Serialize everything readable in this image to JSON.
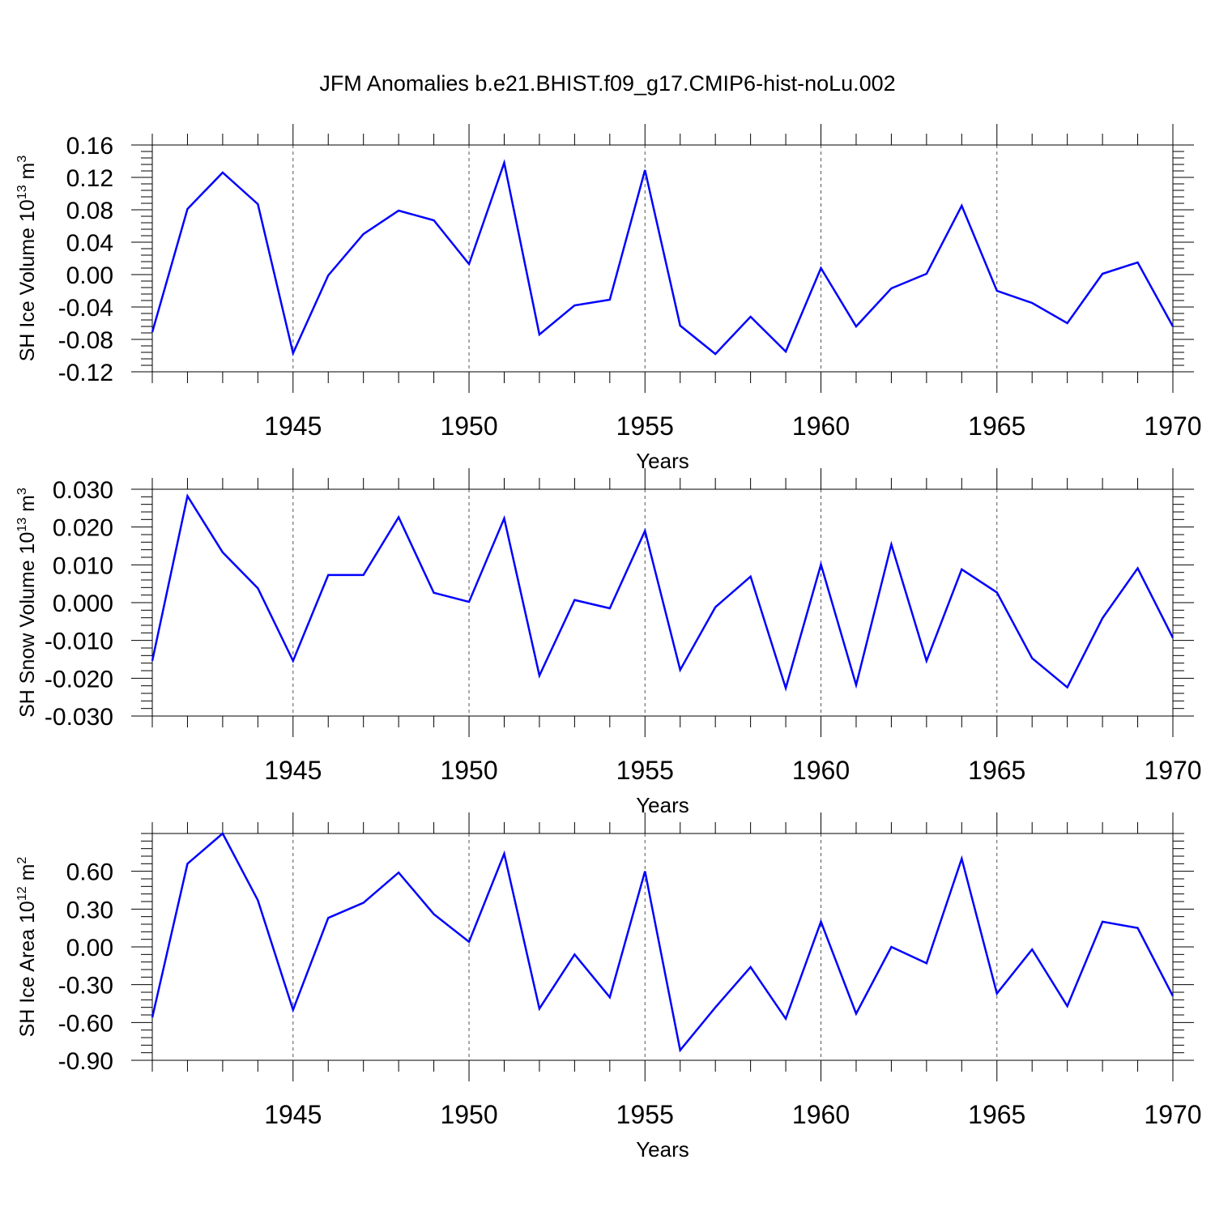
{
  "title": "JFM Anomalies b.e21.BHIST.f09_g17.CMIP6-hist-noLu.002",
  "line_color": "#0000ff",
  "chart_data": [
    {
      "type": "line",
      "ylabel_main": "SH Ice Volume 10",
      "ylabel_exp": "13",
      "ylabel_unit": " m",
      "ylabel_unit_exp": "3",
      "xlabel": "Years",
      "xlim": [
        1941,
        1970
      ],
      "ylim": [
        -0.12,
        0.16
      ],
      "yticks": [
        "0.16",
        "0.12",
        "0.08",
        "0.04",
        "0.00",
        "-0.04",
        "-0.08",
        "-0.12"
      ],
      "ytick_values": [
        0.16,
        0.12,
        0.08,
        0.04,
        0.0,
        -0.04,
        -0.08,
        -0.12
      ],
      "xticks": [
        "1945",
        "1950",
        "1955",
        "1960",
        "1965",
        "1970"
      ],
      "xtick_values": [
        1945,
        1950,
        1955,
        1960,
        1965,
        1970
      ],
      "x": [
        1941,
        1942,
        1943,
        1944,
        1945,
        1946,
        1947,
        1948,
        1949,
        1950,
        1951,
        1952,
        1953,
        1954,
        1955,
        1956,
        1957,
        1958,
        1959,
        1960,
        1961,
        1962,
        1963,
        1964,
        1965,
        1966,
        1967,
        1968,
        1969,
        1970
      ],
      "values": [
        -0.071,
        0.081,
        0.126,
        0.087,
        -0.097,
        -0.001,
        0.05,
        0.079,
        0.067,
        0.013,
        0.138,
        -0.074,
        -0.038,
        -0.031,
        0.129,
        -0.063,
        -0.098,
        -0.052,
        -0.095,
        0.008,
        -0.064,
        -0.017,
        0.001,
        0.085,
        -0.02,
        -0.035,
        -0.06,
        0.001,
        0.015,
        -0.064
      ]
    },
    {
      "type": "line",
      "ylabel_main": "SH Snow Volume 10",
      "ylabel_exp": "13",
      "ylabel_unit": " m",
      "ylabel_unit_exp": "3",
      "xlabel": "Years",
      "xlim": [
        1941,
        1970
      ],
      "ylim": [
        -0.03,
        0.03
      ],
      "yticks": [
        "0.030",
        "0.020",
        "0.010",
        "0.000",
        "-0.010",
        "-0.020",
        "-0.030"
      ],
      "ytick_values": [
        0.03,
        0.02,
        0.01,
        0.0,
        -0.01,
        -0.02,
        -0.03
      ],
      "xticks": [
        "1945",
        "1950",
        "1955",
        "1960",
        "1965",
        "1970"
      ],
      "xtick_values": [
        1945,
        1950,
        1955,
        1960,
        1965,
        1970
      ],
      "x": [
        1941,
        1942,
        1943,
        1944,
        1945,
        1946,
        1947,
        1948,
        1949,
        1950,
        1951,
        1952,
        1953,
        1954,
        1955,
        1956,
        1957,
        1958,
        1959,
        1960,
        1961,
        1962,
        1963,
        1964,
        1965,
        1966,
        1967,
        1968,
        1969,
        1970
      ],
      "values": [
        -0.0154,
        0.0282,
        0.0133,
        0.0038,
        -0.0154,
        0.0073,
        0.0073,
        0.0226,
        0.0026,
        0.0002,
        0.0223,
        -0.0193,
        0.0007,
        -0.0015,
        0.019,
        -0.0178,
        -0.0012,
        0.0069,
        -0.0226,
        0.0101,
        -0.0218,
        0.0154,
        -0.0154,
        0.0088,
        0.0027,
        -0.0147,
        -0.0224,
        -0.0041,
        0.0091,
        -0.0093
      ]
    },
    {
      "type": "line",
      "ylabel_main": "SH Ice Area 10",
      "ylabel_exp": "12",
      "ylabel_unit": " m",
      "ylabel_unit_exp": "2",
      "xlabel": "Years",
      "xlim": [
        1941,
        1970
      ],
      "ylim": [
        -0.9,
        0.9
      ],
      "yticks": [
        "0.60",
        "0.30",
        "0.00",
        "-0.30",
        "-0.60",
        "-0.90"
      ],
      "ytick_values": [
        0.6,
        0.3,
        0.0,
        -0.3,
        -0.6,
        -0.9
      ],
      "xticks": [
        "1945",
        "1950",
        "1955",
        "1960",
        "1965",
        "1970"
      ],
      "xtick_values": [
        1945,
        1950,
        1955,
        1960,
        1965,
        1970
      ],
      "x": [
        1941,
        1942,
        1943,
        1944,
        1945,
        1946,
        1947,
        1948,
        1949,
        1950,
        1951,
        1952,
        1953,
        1954,
        1955,
        1956,
        1957,
        1958,
        1959,
        1960,
        1961,
        1962,
        1963,
        1964,
        1965,
        1966,
        1967,
        1968,
        1969,
        1970
      ],
      "values": [
        -0.56,
        0.66,
        0.9,
        0.37,
        -0.5,
        0.23,
        0.35,
        0.59,
        0.26,
        0.04,
        0.74,
        -0.49,
        -0.06,
        -0.4,
        0.6,
        -0.82,
        -0.48,
        -0.16,
        -0.57,
        0.2,
        -0.53,
        0.0,
        -0.13,
        0.7,
        -0.37,
        -0.02,
        -0.47,
        0.2,
        0.15,
        -0.39
      ]
    }
  ]
}
